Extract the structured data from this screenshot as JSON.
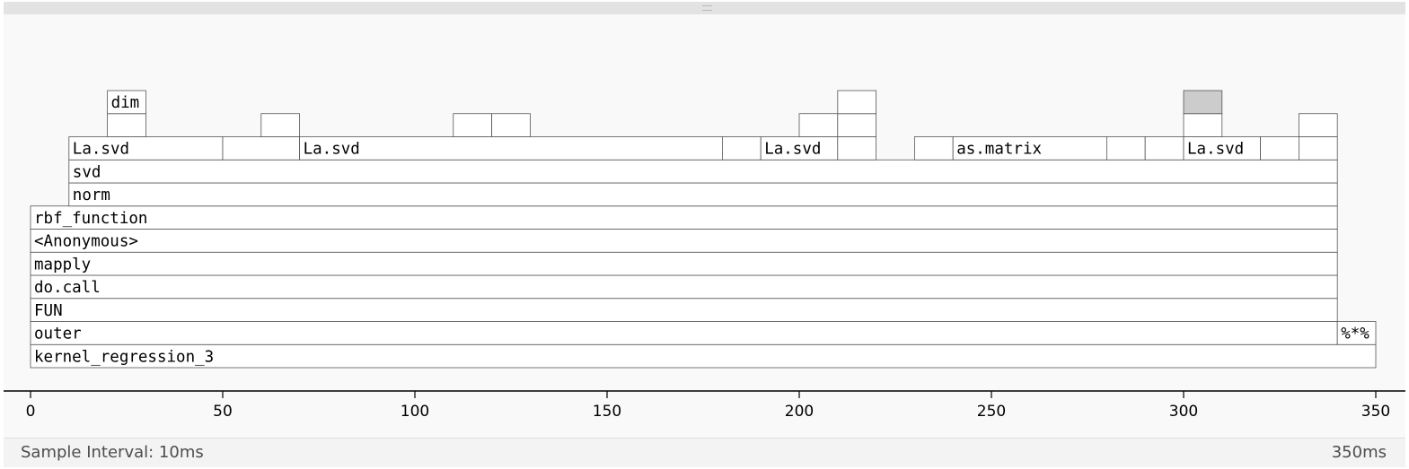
{
  "footer": {
    "sample_interval": "Sample Interval: 10ms",
    "total_time": "350ms"
  },
  "axis": {
    "min": 0,
    "max": 350,
    "ticks": [
      "0",
      "50",
      "100",
      "150",
      "200",
      "250",
      "300",
      "350"
    ]
  },
  "colors": {
    "frame_fill": "#ffffff",
    "frame_stroke": "#555555",
    "selected_fill": "#cccccc",
    "background": "#f9f9f9"
  },
  "frames": [
    {
      "label": "kernel_regression_3",
      "start": 0,
      "end": 350,
      "depth": 0
    },
    {
      "label": "outer",
      "start": 0,
      "end": 340,
      "depth": 1
    },
    {
      "label": "%*%",
      "start": 340,
      "end": 350,
      "depth": 1
    },
    {
      "label": "FUN",
      "start": 0,
      "end": 340,
      "depth": 2
    },
    {
      "label": "do.call",
      "start": 0,
      "end": 340,
      "depth": 3
    },
    {
      "label": "mapply",
      "start": 0,
      "end": 340,
      "depth": 4
    },
    {
      "label": "<Anonymous>",
      "start": 0,
      "end": 340,
      "depth": 5
    },
    {
      "label": "rbf_function",
      "start": 0,
      "end": 340,
      "depth": 6
    },
    {
      "label": "norm",
      "start": 10,
      "end": 340,
      "depth": 7
    },
    {
      "label": "svd",
      "start": 10,
      "end": 340,
      "depth": 8
    },
    {
      "label": "La.svd",
      "start": 10,
      "end": 50,
      "depth": 9
    },
    {
      "label": "",
      "start": 50,
      "end": 70,
      "depth": 9
    },
    {
      "label": "La.svd",
      "start": 70,
      "end": 180,
      "depth": 9
    },
    {
      "label": "",
      "start": 180,
      "end": 190,
      "depth": 9
    },
    {
      "label": "La.svd",
      "start": 190,
      "end": 210,
      "depth": 9
    },
    {
      "label": "",
      "start": 210,
      "end": 220,
      "depth": 9
    },
    {
      "label": "",
      "start": 230,
      "end": 240,
      "depth": 9
    },
    {
      "label": "as.matrix",
      "start": 240,
      "end": 280,
      "depth": 9
    },
    {
      "label": "",
      "start": 280,
      "end": 290,
      "depth": 9
    },
    {
      "label": "",
      "start": 290,
      "end": 300,
      "depth": 9
    },
    {
      "label": "La.svd",
      "start": 300,
      "end": 320,
      "depth": 9
    },
    {
      "label": "",
      "start": 320,
      "end": 330,
      "depth": 9
    },
    {
      "label": "",
      "start": 330,
      "end": 340,
      "depth": 9
    },
    {
      "label": "",
      "start": 20,
      "end": 30,
      "depth": 10
    },
    {
      "label": "",
      "start": 60,
      "end": 70,
      "depth": 10
    },
    {
      "label": "",
      "start": 110,
      "end": 120,
      "depth": 10
    },
    {
      "label": "",
      "start": 120,
      "end": 130,
      "depth": 10
    },
    {
      "label": "",
      "start": 200,
      "end": 210,
      "depth": 10
    },
    {
      "label": "",
      "start": 210,
      "end": 220,
      "depth": 10
    },
    {
      "label": "",
      "start": 300,
      "end": 310,
      "depth": 10
    },
    {
      "label": "",
      "start": 330,
      "end": 340,
      "depth": 10
    },
    {
      "label": "dim",
      "start": 20,
      "end": 30,
      "depth": 11
    },
    {
      "label": "",
      "start": 210,
      "end": 220,
      "depth": 11
    },
    {
      "label": "",
      "start": 300,
      "end": 310,
      "depth": 11,
      "selected": true
    }
  ]
}
